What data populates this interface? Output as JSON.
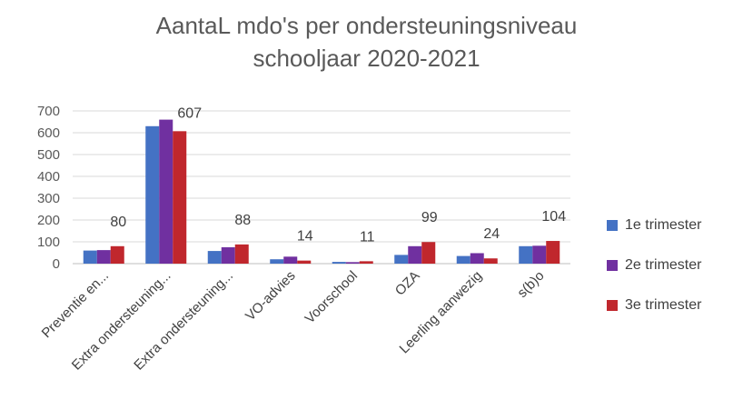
{
  "chart_data": {
    "type": "bar",
    "title_line1": "AantaL mdo's  per ondersteuningsniveau",
    "title_line2": "schooljaar 2020-2021",
    "categories": [
      "Preventie en...",
      "Extra ondersteuning...",
      "Extra ondersteuning...",
      "VO-advies",
      "Voorschool",
      "OZA",
      "Leerling aanwezig",
      "s(b)o"
    ],
    "series": [
      {
        "name": "1e trimester",
        "color": "#4472C4",
        "values": [
          60,
          630,
          58,
          20,
          8,
          40,
          35,
          80
        ]
      },
      {
        "name": "2e trimester",
        "color": "#7030A0",
        "values": [
          62,
          660,
          75,
          32,
          7,
          80,
          48,
          82
        ]
      },
      {
        "name": "3e trimester",
        "color": "#C0272D",
        "values": [
          80,
          607,
          88,
          14,
          11,
          99,
          24,
          104
        ]
      }
    ],
    "data_labels": [
      "80",
      "607",
      "88",
      "14",
      "11",
      "99",
      "24",
      "104"
    ],
    "yticks": [
      0,
      100,
      200,
      300,
      400,
      500,
      600,
      700
    ],
    "ylim": [
      0,
      700
    ],
    "grid": true,
    "legend_position": "right"
  }
}
